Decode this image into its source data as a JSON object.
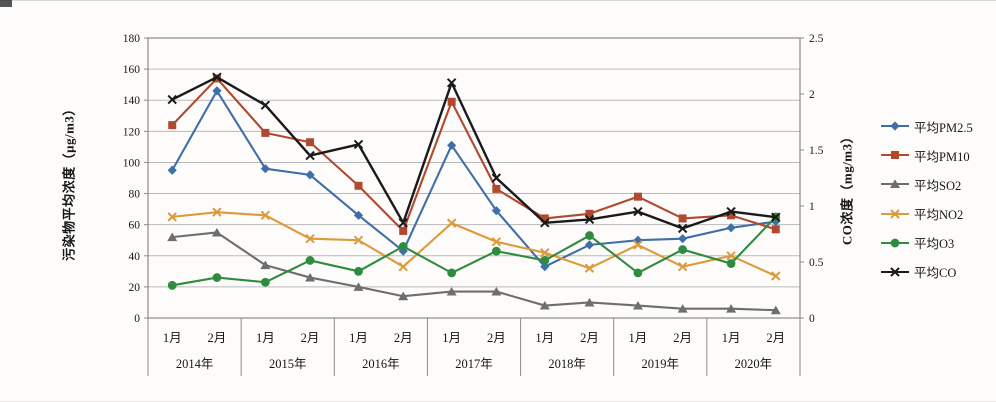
{
  "page": {
    "background": "#fdfcfb"
  },
  "chart_data": {
    "type": "line",
    "title": "",
    "left_axis": {
      "label": "污染物平均浓度（μg/m3）",
      "min": 0,
      "max": 180,
      "tick_step": 20,
      "ticks": [
        0,
        20,
        40,
        60,
        80,
        100,
        120,
        140,
        160,
        180
      ]
    },
    "right_axis": {
      "label": "CO浓度（mg/m3）",
      "min": 0,
      "max": 2.5,
      "tick_step": 0.5,
      "ticks": [
        0,
        0.5,
        1,
        1.5,
        2,
        2.5
      ]
    },
    "years": [
      "2014年",
      "2015年",
      "2016年",
      "2017年",
      "2018年",
      "2019年",
      "2020年"
    ],
    "months_per_year": [
      "1月",
      "2月"
    ],
    "grid": true,
    "legend_position": "right",
    "colors": {
      "grid": "#b9b9b9",
      "border": "#8a8a8a",
      "text": "#161616"
    },
    "series": [
      {
        "id": "pm25",
        "name": "平均PM2.5",
        "color": "#3f6fa8",
        "marker": "diamond",
        "axis": "left",
        "values": [
          95,
          146,
          96,
          92,
          66,
          43,
          111,
          69,
          33,
          47,
          50,
          51,
          58,
          62
        ]
      },
      {
        "id": "pm10",
        "name": "平均PM10",
        "color": "#b0492f",
        "marker": "square",
        "axis": "left",
        "values": [
          124,
          154,
          119,
          113,
          85,
          56,
          139,
          83,
          64,
          67,
          78,
          64,
          66,
          57
        ]
      },
      {
        "id": "so2",
        "name": "平均SO2",
        "color": "#6e6e6e",
        "marker": "triangle",
        "axis": "left",
        "values": [
          52,
          55,
          34,
          26,
          20,
          14,
          17,
          17,
          8,
          10,
          8,
          6,
          6,
          5
        ]
      },
      {
        "id": "no2",
        "name": "平均NO2",
        "color": "#dd9a3c",
        "marker": "x",
        "axis": "left",
        "values": [
          65,
          68,
          66,
          51,
          50,
          33,
          61,
          49,
          42,
          32,
          47,
          33,
          40,
          27
        ]
      },
      {
        "id": "o3",
        "name": "平均O3",
        "color": "#2f8b3f",
        "marker": "circle",
        "axis": "left",
        "values": [
          21,
          26,
          23,
          37,
          30,
          46,
          29,
          43,
          37,
          53,
          29,
          44,
          35,
          65
        ]
      },
      {
        "id": "co",
        "name": "平均CO",
        "color": "#1a1a1a",
        "marker": "xcross",
        "axis": "right",
        "values": [
          1.95,
          2.15,
          1.9,
          1.45,
          1.55,
          0.85,
          2.1,
          1.25,
          0.85,
          0.88,
          0.95,
          0.8,
          0.95,
          0.9
        ]
      }
    ]
  }
}
